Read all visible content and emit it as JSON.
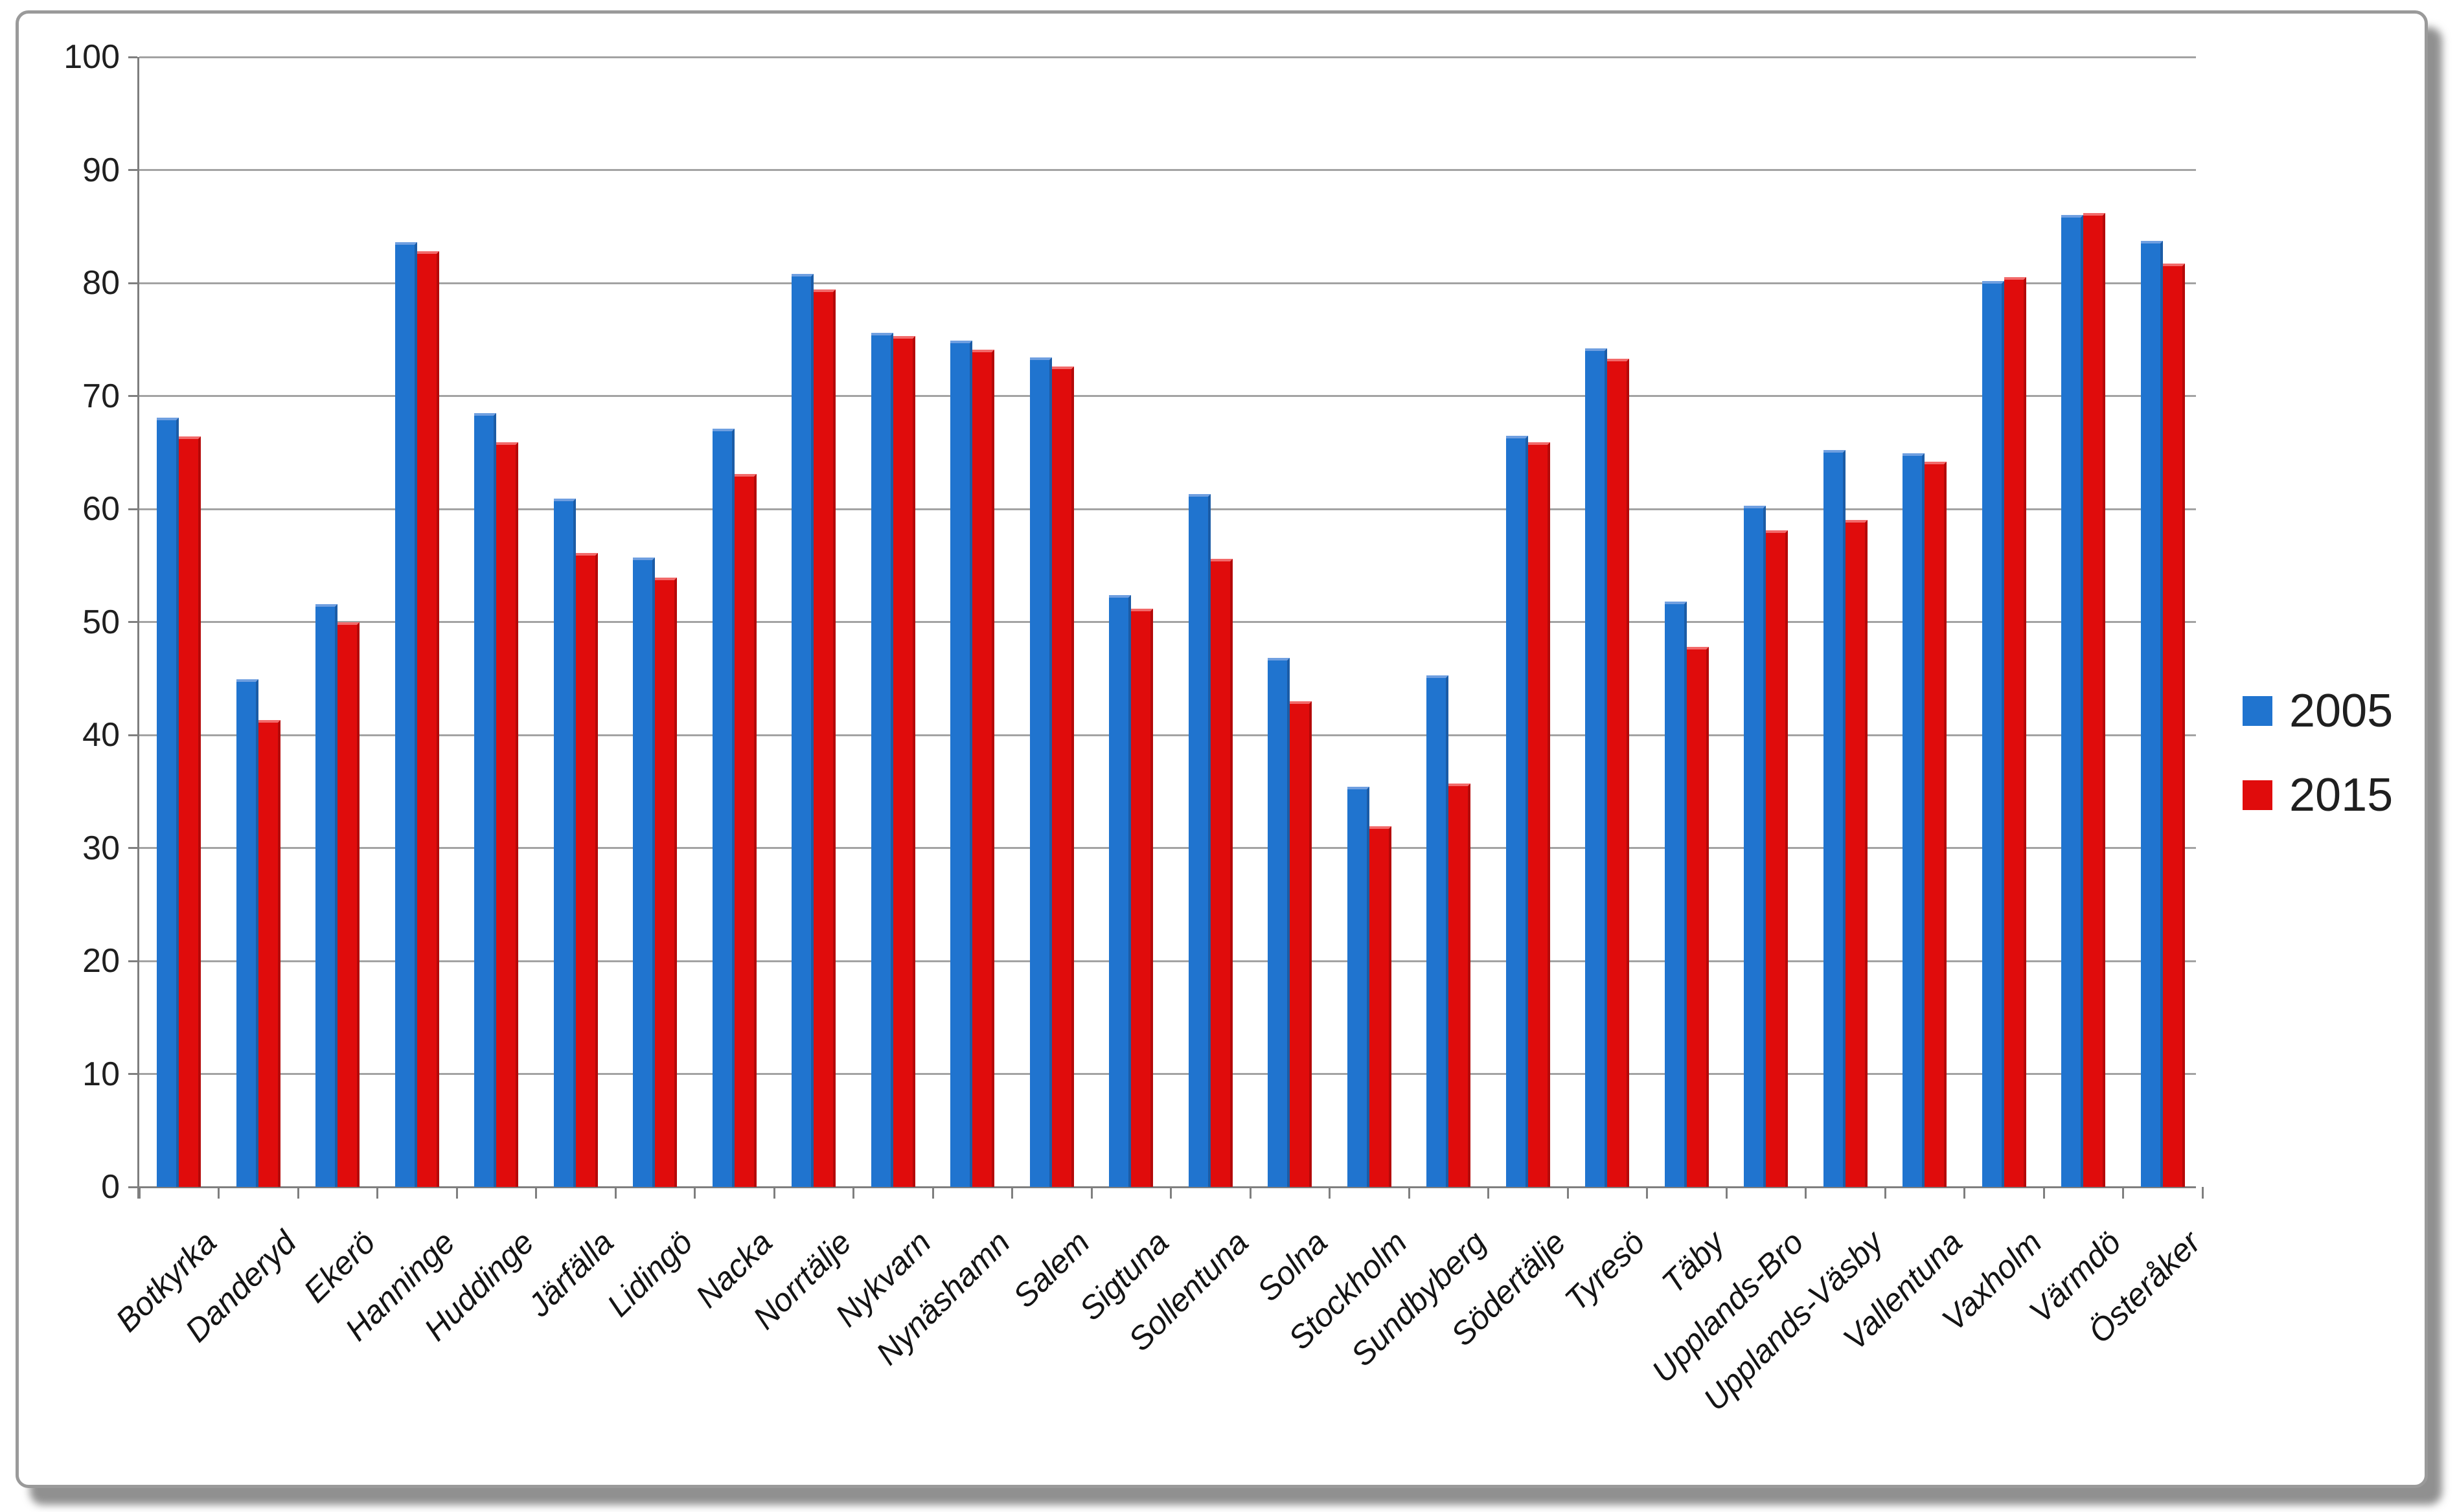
{
  "legend": {
    "series_2005_label": "2005",
    "series_2015_label": "2015"
  },
  "colors": {
    "series_2005": "#2074cf",
    "series_2015": "#e00c0c",
    "gridline": "#a3a3a3",
    "axis": "#7f7f7f",
    "panel_border": "#9a9a9a",
    "text": "#1f1f1f"
  },
  "chart_data": {
    "type": "bar",
    "title": "",
    "xlabel": "",
    "ylabel": "",
    "ylim": [
      0,
      100
    ],
    "ytick_step": 10,
    "grid": true,
    "legend_position": "right",
    "y_ticks": [
      "0",
      "10",
      "20",
      "30",
      "40",
      "50",
      "60",
      "70",
      "80",
      "90",
      "100"
    ],
    "categories": [
      "Botkyrka",
      "Danderyd",
      "Ekerö",
      "Hanninge",
      "Huddinge",
      "Järfälla",
      "Lidingö",
      "Nacka",
      "Norrtälje",
      "Nykvarn",
      "Nynäshamn",
      "Salem",
      "Sigtuna",
      "Sollentuna",
      "Solna",
      "Stockholm",
      "Sundbyberg",
      "Södertälje",
      "Tyresö",
      "Täby",
      "Upplands-Bro",
      "Upplands-Väsby",
      "Vallentuna",
      "Vaxholm",
      "Värmdö",
      "Österåker"
    ],
    "series": [
      {
        "name": "2005",
        "color": "#2074cf",
        "edge_light": "#6f9fe0",
        "edge_dark": "#1b5ca6",
        "values": [
          68.1,
          44.9,
          51.6,
          83.6,
          68.5,
          60.9,
          55.7,
          67.1,
          80.8,
          75.6,
          74.9,
          73.4,
          52.4,
          61.3,
          46.8,
          35.4,
          45.3,
          66.5,
          74.2,
          51.8,
          60.3,
          65.2,
          64.9,
          80.2,
          86.0,
          83.7
        ]
      },
      {
        "name": "2015",
        "color": "#e00c0c",
        "edge_light": "#f26a6a",
        "edge_dark": "#b50909",
        "values": [
          66.4,
          41.3,
          50.0,
          82.8,
          65.9,
          56.1,
          53.9,
          63.1,
          79.4,
          75.3,
          74.1,
          72.6,
          51.2,
          55.6,
          43.0,
          31.9,
          35.7,
          65.9,
          73.3,
          47.8,
          58.1,
          59.0,
          64.2,
          80.5,
          86.2,
          81.7
        ]
      }
    ]
  }
}
